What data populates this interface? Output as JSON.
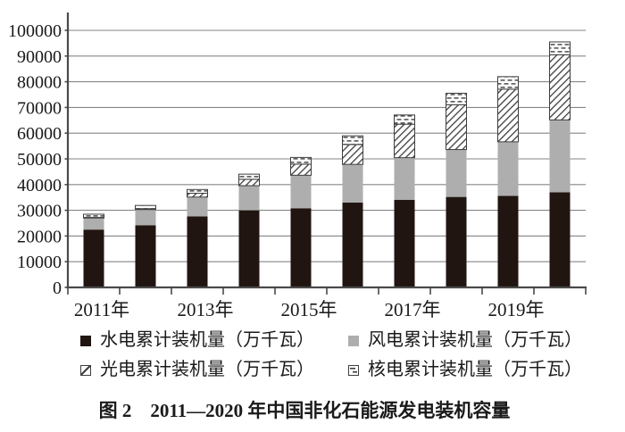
{
  "figure": {
    "caption": "图 2　2011—2020 年中国非化石能源发电装机容量"
  },
  "chart_data": {
    "type": "bar",
    "stacked": true,
    "title": "图 2　2011—2020 年中国非化石能源发电装机容量",
    "unit": "万千瓦",
    "categories": [
      "2011年",
      "2012年",
      "2013年",
      "2014年",
      "2015年",
      "2016年",
      "2017年",
      "2018年",
      "2019年",
      "2020年"
    ],
    "x_tick_labels_shown": [
      "2011年",
      "2013年",
      "2015年",
      "2017年",
      "2019年"
    ],
    "x_ticks_shown_every": 2,
    "series": [
      {
        "name": "水电累计装机量（万千瓦）",
        "style": "solid-black",
        "color": "#201511",
        "values": [
          22500,
          24200,
          27600,
          30000,
          30800,
          33000,
          34100,
          35200,
          35640,
          37016
        ]
      },
      {
        "name": "风电累计装机量（万千瓦）",
        "style": "solid-gray",
        "color": "#aeaeae",
        "values": [
          4505,
          6083,
          7548,
          9581,
          12830,
          14864,
          16367,
          18426,
          21005,
          28153
        ]
      },
      {
        "name": "光电累计装机量（万千瓦）",
        "style": "diagonal-hatch",
        "color": "#ffffff",
        "hatch_color": "#3e3e3e",
        "values": [
          222,
          341,
          1479,
          2486,
          4318,
          7742,
          13025,
          17446,
          20468,
          25343
        ]
      },
      {
        "name": "核电累计装机量（万千瓦）",
        "style": "dashed-rows",
        "color": "#ffffff",
        "hatch_color": "#3e3e3e",
        "values": [
          1257,
          1257,
          1461,
          1988,
          2608,
          3364,
          3582,
          4466,
          4874,
          4989
        ]
      }
    ],
    "ylim": [
      0,
      100000
    ],
    "y_ticks": [
      0,
      10000,
      20000,
      30000,
      40000,
      50000,
      60000,
      70000,
      80000,
      90000,
      100000
    ],
    "grid": true,
    "legend_position": "bottom",
    "axis_color": "#4a4a4a",
    "grid_color": "#868686",
    "text_color": "#1a1a1a"
  }
}
